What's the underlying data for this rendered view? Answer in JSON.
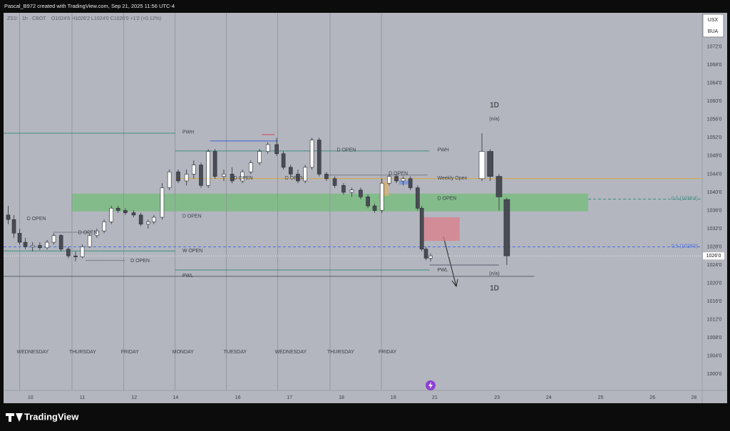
{
  "chart_data": {
    "type": "candlestick",
    "header": "Pascal_B972 created with TradingView.com, Sep 21, 2025 11:56 UTC-4",
    "symbol": "ZS1! · 1h · CBOT",
    "ohlc_info": "O1024'6 H1026'2 L1024'0 C1026'0 +1'2 (+0.12%)",
    "currency": [
      "USX",
      "BUA"
    ],
    "brand": "TradingView",
    "xlim": [
      -5.2,
      129.6
    ],
    "ylim": [
      996.4,
      1079.5
    ],
    "xticks": [
      {
        "value": 0,
        "label": "10"
      },
      {
        "value": 10,
        "label": "11"
      },
      {
        "value": 20,
        "label": "12"
      },
      {
        "value": 28,
        "label": "14"
      },
      {
        "value": 40,
        "label": "16"
      },
      {
        "value": 50,
        "label": "17"
      },
      {
        "value": 60,
        "label": "18"
      },
      {
        "value": 70,
        "label": "19"
      },
      {
        "value": 78,
        "label": "21"
      },
      {
        "value": 90,
        "label": "23"
      },
      {
        "value": 100,
        "label": "24"
      },
      {
        "value": 110,
        "label": "25"
      },
      {
        "value": 120,
        "label": "26"
      },
      {
        "value": 128,
        "label": "28"
      }
    ],
    "yticks": [
      {
        "value": 1072,
        "label": "1072'0"
      },
      {
        "value": 1068,
        "label": "1068'0"
      },
      {
        "value": 1064,
        "label": "1064'0"
      },
      {
        "value": 1060,
        "label": "1060'0"
      },
      {
        "value": 1056,
        "label": "1056'0"
      },
      {
        "value": 1052,
        "label": "1052'0"
      },
      {
        "value": 1048,
        "label": "1048'0"
      },
      {
        "value": 1044,
        "label": "1044'0"
      },
      {
        "value": 1040,
        "label": "1040'0"
      },
      {
        "value": 1036,
        "label": "1036'0"
      },
      {
        "value": 1032,
        "label": "1032'0"
      },
      {
        "value": 1028,
        "label": "1028'0"
      },
      {
        "value": 1024,
        "label": "1024'0"
      },
      {
        "value": 1020,
        "label": "1020'0"
      },
      {
        "value": 1016,
        "label": "1016'0"
      },
      {
        "value": 1012,
        "label": "1012'0"
      },
      {
        "value": 1008,
        "label": "1008'0"
      },
      {
        "value": 1004,
        "label": "1004'0"
      },
      {
        "value": 1000,
        "label": "1000'0"
      }
    ],
    "last_price": {
      "value": 1026,
      "label": "1026'0"
    },
    "sessions": [
      {
        "label": "WEDNESDAY",
        "x": -2.1
      },
      {
        "label": "THURSDAY",
        "x": 8.0
      },
      {
        "label": "FRIDAY",
        "x": 18.0
      },
      {
        "label": "MONDAY",
        "x": 27.9
      },
      {
        "label": "TUESDAY",
        "x": 37.8
      },
      {
        "label": "WEDNESDAY",
        "x": 47.7
      },
      {
        "label": "THURSDAY",
        "x": 57.8
      },
      {
        "label": "FRIDAY",
        "x": 67.7
      }
    ],
    "candles": {
      "x": [
        -4.3,
        -3.2,
        -2.1,
        -1.0,
        0.4,
        1.8,
        3.2,
        4.5,
        5.9,
        7.3,
        8.7,
        10.0,
        11.4,
        12.8,
        14.2,
        15.6,
        16.9,
        18.3,
        19.9,
        21.3,
        22.7,
        23.8,
        25.4,
        26.8,
        28.5,
        30.1,
        31.5,
        32.9,
        34.3,
        35.6,
        37.3,
        38.9,
        40.9,
        42.5,
        44.2,
        45.8,
        47.5,
        48.8,
        50.2,
        51.6,
        53.0,
        54.3,
        55.7,
        57.1,
        58.7,
        60.4,
        62.0,
        63.7,
        65.1,
        66.4,
        67.8,
        69.2,
        70.6,
        71.9,
        73.3,
        74.7,
        75.5,
        76.3,
        77.2
      ],
      "open": [
        1035,
        1034,
        1031,
        1029,
        1028,
        1028.3,
        1027.8,
        1029,
        1030.5,
        1027.5,
        1026,
        1025.8,
        1028,
        1030.5,
        1031.5,
        1033.5,
        1036.5,
        1036,
        1035.5,
        1035,
        1033,
        1033.5,
        1034.5,
        1041,
        1044.5,
        1042.5,
        1044,
        1046,
        1041.5,
        1049,
        1043.5,
        1044,
        1042.5,
        1044.5,
        1046.5,
        1049,
        1050.5,
        1048.5,
        1045.5,
        1044,
        1042.5,
        1045.5,
        1051.5,
        1044,
        1043,
        1041.5,
        1040,
        1040.5,
        1039,
        1037,
        1036,
        1042,
        1043.5,
        1042.5,
        1043,
        1041,
        1036.5,
        1027.5,
        1025.5
      ],
      "high": [
        1037,
        1035,
        1032,
        1030,
        1029,
        1029,
        1029.5,
        1031,
        1030.8,
        1028,
        1027,
        1028.5,
        1031,
        1032,
        1034,
        1037,
        1037,
        1036.5,
        1036,
        1035.5,
        1034,
        1035,
        1042,
        1045,
        1045,
        1045,
        1047,
        1046.5,
        1049.5,
        1049.5,
        1045,
        1045.5,
        1045,
        1047,
        1049.5,
        1051,
        1052,
        1049,
        1046,
        1045,
        1046,
        1052,
        1052,
        1044.5,
        1043.5,
        1042,
        1041,
        1041,
        1039.5,
        1037.5,
        1043,
        1044,
        1044,
        1043.5,
        1043.5,
        1041.5,
        1037,
        1028,
        1026.5
      ],
      "low": [
        1033,
        1030,
        1028.5,
        1027.5,
        1027,
        1027.3,
        1027.4,
        1028.5,
        1027,
        1025.5,
        1024.8,
        1025.5,
        1027.8,
        1030,
        1031,
        1033,
        1035.5,
        1035,
        1034.5,
        1032.5,
        1032,
        1033,
        1034,
        1040.5,
        1042,
        1041.5,
        1043,
        1041,
        1041,
        1043,
        1042.5,
        1042,
        1042,
        1044,
        1046,
        1048.5,
        1048,
        1045,
        1043.5,
        1042,
        1042,
        1045,
        1043.5,
        1042.5,
        1041,
        1039.5,
        1039,
        1038.5,
        1036.5,
        1035.5,
        1035.5,
        1041.5,
        1042,
        1041.5,
        1040.5,
        1036,
        1027,
        1025,
        1024.8
      ],
      "close": [
        1034,
        1031,
        1029,
        1028,
        1028.3,
        1027.8,
        1029,
        1030.5,
        1027.5,
        1026,
        1025.8,
        1028,
        1030.5,
        1031.5,
        1033.5,
        1036.5,
        1036,
        1035.5,
        1035,
        1033,
        1033.5,
        1034.5,
        1041,
        1044.5,
        1042.5,
        1044,
        1046,
        1041.5,
        1049,
        1043.5,
        1044,
        1042.5,
        1044.5,
        1046.5,
        1049,
        1050.5,
        1048.5,
        1045.5,
        1044,
        1042.5,
        1045.5,
        1051.5,
        1044,
        1043,
        1041.5,
        1040,
        1040.5,
        1039,
        1037,
        1036,
        1042,
        1043.5,
        1042.5,
        1043,
        1041,
        1036.5,
        1027.5,
        1025.5,
        1026
      ]
    },
    "daily": {
      "label": "1D",
      "note": "(n/a)",
      "x": [
        87.1,
        88.7,
        90.4,
        91.9
      ],
      "open": [
        1043,
        1049,
        1043.5,
        1038.4
      ],
      "high": [
        1053,
        1049.5,
        1044,
        1038.8
      ],
      "low": [
        1042.5,
        1042.5,
        1036,
        1024
      ],
      "close": [
        1049,
        1043.5,
        1039,
        1026
      ]
    },
    "levels": [
      {
        "value": 1053.0,
        "x": [
          -5.2,
          27.9
        ],
        "color": "#3f8e80"
      },
      {
        "value": 1049.1,
        "x": [
          27.9,
          77.0
        ],
        "color": "#3f8e80"
      },
      {
        "value": 1027.1,
        "x": [
          -5.2,
          27.9
        ],
        "color": "#3f8e80"
      },
      {
        "value": 1022.9,
        "x": [
          27.9,
          77.0
        ],
        "color": "#3f8e80"
      },
      {
        "value": 1021.5,
        "x": [
          -5.2,
          97.2
        ],
        "color": "#5d606b"
      },
      {
        "value": 1043.0,
        "x": [
          27.9,
          129.6
        ],
        "color": "#d9a441"
      },
      {
        "value": 1051.3,
        "x": [
          34.7,
          47.7
        ],
        "color": "#3b5fd6"
      },
      {
        "value": 1052.7,
        "x": [
          44.6,
          47.1
        ],
        "color": "#d8435a"
      },
      {
        "value": 1031.2,
        "x": [
          4.4,
          11.3
        ],
        "color": "#7b7e88"
      },
      {
        "value": 1025.0,
        "x": [
          10.6,
          18.2
        ],
        "color": "#7b7e88"
      },
      {
        "value": 1043.8,
        "x": [
          56.7,
          76.6
        ],
        "color": "#7b7e88"
      },
      {
        "value": 1024.0,
        "x": [
          77.0,
          90.4
        ],
        "color": "#5d606b"
      }
    ],
    "fib": [
      {
        "label": "0.5 (1038'4)",
        "value": 1038.5,
        "x": [
          107.6,
          129.6
        ],
        "color": "#3f8e80"
      },
      {
        "label": "0.5 (1028'0)",
        "value": 1028,
        "x": [
          -5.2,
          129.6
        ],
        "color": "#4a6fe0"
      }
    ],
    "zones": [
      {
        "x": [
          7.9,
          107.6
        ],
        "y": [
          1035.8,
          1039.7
        ],
        "color": "#6fbf73"
      },
      {
        "x": [
          75.2,
          82.8
        ],
        "y": [
          1029.3,
          1034.5
        ],
        "color": "#e07a86"
      },
      {
        "x": [
          67.8,
          69.1
        ],
        "y": [
          1039.2,
          1042.4
        ],
        "color": "#e0b36a"
      },
      {
        "x": [
          71.1,
          73.6
        ],
        "y": [
          1041.7,
          1042.6
        ],
        "color": "#6f8fe0"
      }
    ],
    "annotations": [
      {
        "text": "D OPEN",
        "x": -0.7,
        "y": 1034.2
      },
      {
        "text": "D OPEN",
        "x": 9.2,
        "y": 1031.1
      },
      {
        "text": "D OPEN",
        "x": 19.3,
        "y": 1024.9
      },
      {
        "text": "D OPEN",
        "x": 29.3,
        "y": 1034.7
      },
      {
        "text": "D OPEN",
        "x": 39.2,
        "y": 1043.1
      },
      {
        "text": "D OPEN",
        "x": 49.1,
        "y": 1043.1
      },
      {
        "text": "D OPEN",
        "x": 59.1,
        "y": 1049.3
      },
      {
        "text": "D OPEN",
        "x": 69.1,
        "y": 1044.1
      },
      {
        "text": "D OPEN",
        "x": 78.5,
        "y": 1038.6
      },
      {
        "text": "W OPEN",
        "x": 29.3,
        "y": 1027.1
      },
      {
        "text": "PWH",
        "x": 29.3,
        "y": 1053.2
      },
      {
        "text": "PWH",
        "x": 78.5,
        "y": 1049.3
      },
      {
        "text": "PWL",
        "x": 29.3,
        "y": 1021.6
      },
      {
        "text": "PWL",
        "x": 78.5,
        "y": 1022.9
      },
      {
        "text": "Weekly Open",
        "x": 78.5,
        "y": 1043.1
      }
    ]
  }
}
